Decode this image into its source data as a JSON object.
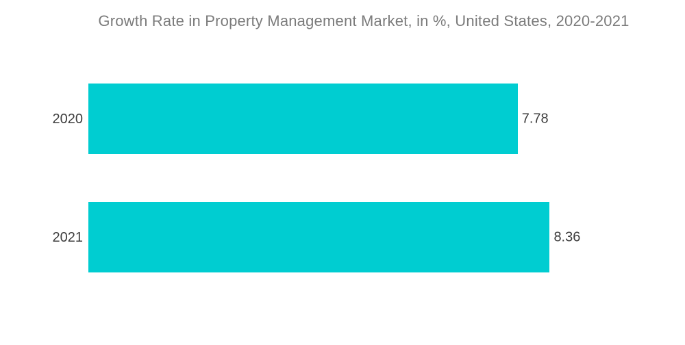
{
  "title": "Growth Rate in Property Management Market, in %, United States, 2020-2021",
  "colors": {
    "bar": "#00CDD1",
    "title_text": "#7b7b7b",
    "label_text": "#3d3d3d",
    "background": "#ffffff"
  },
  "chart_data": {
    "type": "bar",
    "orientation": "horizontal",
    "title": "Growth Rate in Property Management Market, in %, United States, 2020-2021",
    "categories": [
      "2020",
      "2021"
    ],
    "values": [
      7.78,
      8.36
    ],
    "value_labels": [
      "7.78",
      "8.36"
    ],
    "xlabel": "",
    "ylabel": "",
    "xlim": [
      0,
      10.8
    ],
    "grid": false,
    "legend": false,
    "axis_ticks_visible": false,
    "bar_label_position": "outside-end"
  }
}
